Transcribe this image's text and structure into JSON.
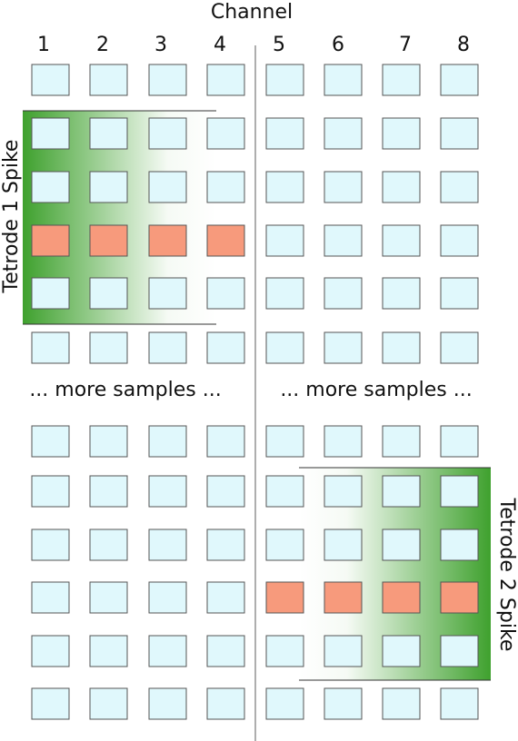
{
  "header": {
    "title": "Channel"
  },
  "channels": [
    "1",
    "2",
    "3",
    "4",
    "5",
    "6",
    "7",
    "8"
  ],
  "separator_text": {
    "left": "... more samples ...",
    "right": "... more samples ..."
  },
  "tetrodes": [
    {
      "label": "Tetrode 1 Spike",
      "channels": [
        1,
        2,
        3,
        4
      ],
      "spike_sample": 3,
      "gradient_color": "#3fa12e"
    },
    {
      "label": "Tetrode 2 Spike",
      "channels": [
        5,
        6,
        7,
        8
      ],
      "spike_sample": 3,
      "gradient_color": "#3fa12e"
    }
  ],
  "colors": {
    "cell": "#e0f8fc",
    "spike_cell": "#f79a7c",
    "cell_border": "#555555",
    "divider": "#777777"
  }
}
